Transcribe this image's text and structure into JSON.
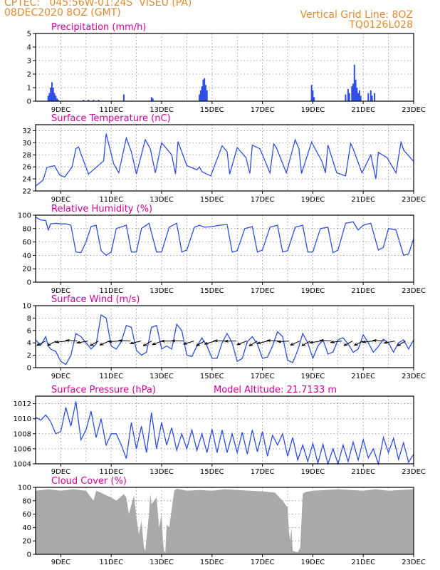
{
  "header": {
    "line1_left": "CPTEC:   045:56W-01:24S  VISEU (PA)",
    "line2_left": "08DEC2020 8OZ (GMT)",
    "line1_right": "Vertical Grid Line: 8OZ",
    "line2_right": "TQ0126L028"
  },
  "colors": {
    "series": "#2e4ee6",
    "cloud": "#a9a9a9",
    "title": "#d6009a",
    "header": "#e08a2e"
  },
  "x_axis": {
    "ticks": [
      "9DEC",
      "11DEC",
      "13DEC",
      "15DEC",
      "17DEC",
      "19DEC",
      "21DEC",
      "23DEC"
    ],
    "tick_days": [
      9,
      11,
      13,
      15,
      17,
      19,
      21,
      23
    ],
    "range_days": [
      8.0,
      23.0
    ]
  },
  "chart_data": [
    {
      "type": "bar",
      "title": "Precipitation (mm/h)",
      "ylim": [
        0,
        5
      ],
      "yticks": [
        "0",
        "1",
        "2",
        "3",
        "4",
        "5"
      ],
      "x_days": [
        8.5,
        8.55,
        8.6,
        8.65,
        8.7,
        8.75,
        8.8,
        8.85,
        8.9,
        9.9,
        10.1,
        10.3,
        10.5,
        11.5,
        12.6,
        12.65,
        14.5,
        14.55,
        14.6,
        14.65,
        14.7,
        14.75,
        14.8,
        18.95,
        19.0,
        19.05,
        20.3,
        20.4,
        20.45,
        20.55,
        20.6,
        20.65,
        20.7,
        20.75,
        20.8,
        20.85,
        20.9,
        21.2,
        21.3,
        21.35,
        21.45
      ],
      "values": [
        0.4,
        0.6,
        1.0,
        1.4,
        1.0,
        0.6,
        0.4,
        0.2,
        0.1,
        0.1,
        0.1,
        0.1,
        0.1,
        0.5,
        0.3,
        0.2,
        0.5,
        0.8,
        1.1,
        1.6,
        1.7,
        1.2,
        0.8,
        1.2,
        0.8,
        0.3,
        0.5,
        0.9,
        0.6,
        1.1,
        1.3,
        2.7,
        1.6,
        1.0,
        0.6,
        0.8,
        0.4,
        0.6,
        0.8,
        0.4,
        0.6
      ]
    },
    {
      "type": "line",
      "title": "Surface Temperature (nC)",
      "ylim": [
        22,
        33
      ],
      "yticks": [
        "22",
        "24",
        "26",
        "28",
        "30",
        "32"
      ],
      "x_days": [
        8.0,
        8.3,
        8.45,
        8.75,
        8.95,
        9.15,
        9.45,
        9.6,
        9.7,
        10.1,
        10.7,
        10.8,
        11.1,
        11.3,
        11.6,
        11.8,
        12.0,
        12.35,
        12.55,
        12.75,
        13.0,
        13.4,
        13.55,
        13.65,
        14.0,
        14.4,
        14.5,
        14.6,
        14.95,
        15.4,
        15.6,
        15.7,
        16.0,
        16.35,
        16.5,
        16.6,
        16.9,
        17.3,
        17.45,
        17.55,
        17.95,
        18.3,
        18.45,
        18.55,
        18.95,
        19.35,
        19.5,
        19.6,
        19.95,
        20.3,
        20.5,
        20.6,
        20.95,
        21.3,
        21.5,
        21.6,
        21.95,
        22.3,
        22.5,
        22.6,
        23.0
      ],
      "values": [
        22.8,
        23.8,
        25.9,
        26.2,
        24.7,
        24.3,
        26.0,
        29.0,
        29.3,
        24.8,
        27.0,
        31.5,
        26.5,
        25.0,
        30.8,
        28.5,
        24.8,
        30.5,
        29.0,
        25.0,
        30.0,
        28.0,
        24.8,
        30.2,
        26.2,
        25.5,
        26.0,
        25.2,
        24.5,
        29.5,
        28.5,
        24.8,
        29.2,
        27.5,
        24.9,
        29.6,
        29.0,
        25.0,
        29.8,
        29.2,
        25.0,
        30.5,
        29.0,
        24.9,
        30.1,
        27.0,
        25.0,
        29.6,
        25.0,
        24.5,
        29.9,
        29.0,
        25.0,
        28.0,
        24.0,
        28.4,
        27.5,
        25.0,
        30.2,
        28.8,
        26.9
      ]
    },
    {
      "type": "line",
      "title": "Relative Humidity (%)",
      "ylim": [
        0,
        100
      ],
      "yticks": [
        "0",
        "20",
        "40",
        "60",
        "80",
        "100"
      ],
      "x_days": [
        8.0,
        8.2,
        8.4,
        8.5,
        8.6,
        8.8,
        9.0,
        9.2,
        9.4,
        9.6,
        9.8,
        10.0,
        10.2,
        10.4,
        10.6,
        10.8,
        11.0,
        11.2,
        11.6,
        11.8,
        12.0,
        12.2,
        12.5,
        12.8,
        13.0,
        13.3,
        13.6,
        13.8,
        14.0,
        14.3,
        14.5,
        14.7,
        15.0,
        15.3,
        15.6,
        15.8,
        16.0,
        16.3,
        16.6,
        16.8,
        17.0,
        17.3,
        17.6,
        17.8,
        18.0,
        18.3,
        18.6,
        18.8,
        19.0,
        19.3,
        19.6,
        19.8,
        20.0,
        20.3,
        20.6,
        20.8,
        21.0,
        21.3,
        21.6,
        21.8,
        22.0,
        22.3,
        22.6,
        22.8,
        23.0
      ],
      "values": [
        97,
        93,
        92,
        78,
        87,
        88,
        87,
        87,
        85,
        45,
        44,
        60,
        83,
        85,
        47,
        40,
        45,
        80,
        85,
        45,
        45,
        80,
        88,
        45,
        45,
        82,
        88,
        45,
        48,
        82,
        85,
        82,
        83,
        85,
        86,
        45,
        47,
        80,
        83,
        45,
        48,
        82,
        85,
        45,
        47,
        82,
        85,
        45,
        45,
        80,
        82,
        44,
        48,
        88,
        90,
        78,
        85,
        88,
        48,
        52,
        80,
        78,
        40,
        42,
        65
      ]
    },
    {
      "type": "line",
      "title": "Surface Wind (m/s)",
      "ylim": [
        0,
        10
      ],
      "yticks": [
        "0",
        "2",
        "4",
        "6",
        "8",
        "10"
      ],
      "x_days": [
        8.0,
        8.2,
        8.4,
        8.5,
        8.6,
        8.8,
        9.0,
        9.2,
        9.4,
        9.6,
        9.8,
        10.0,
        10.2,
        10.4,
        10.6,
        10.8,
        11.0,
        11.2,
        11.4,
        11.6,
        11.8,
        12.0,
        12.2,
        12.4,
        12.6,
        12.8,
        13.0,
        13.2,
        13.4,
        13.6,
        13.8,
        14.0,
        14.2,
        14.4,
        14.6,
        14.8,
        15.0,
        15.2,
        15.4,
        15.6,
        15.8,
        16.0,
        16.2,
        16.4,
        16.6,
        16.8,
        17.0,
        17.2,
        17.4,
        17.6,
        17.8,
        18.0,
        18.2,
        18.4,
        18.6,
        18.8,
        19.0,
        19.2,
        19.4,
        19.6,
        19.8,
        20.0,
        20.2,
        20.4,
        20.6,
        20.8,
        21.0,
        21.2,
        21.4,
        21.6,
        21.8,
        22.0,
        22.2,
        22.4,
        22.6,
        22.8,
        23.0
      ],
      "values": [
        4.5,
        3.6,
        5.0,
        3.5,
        3.0,
        2.6,
        1.0,
        0.5,
        2.0,
        5.5,
        5.0,
        4.0,
        3.0,
        3.8,
        8.5,
        8.0,
        3.5,
        3.0,
        4.2,
        6.8,
        6.5,
        2.8,
        2.0,
        2.5,
        6.5,
        6.8,
        3.0,
        3.5,
        3.0,
        7.0,
        6.0,
        2.0,
        1.8,
        3.5,
        4.8,
        3.5,
        1.5,
        1.5,
        4.0,
        5.5,
        4.0,
        1.0,
        1.5,
        4.2,
        5.0,
        3.8,
        1.5,
        1.7,
        3.5,
        5.8,
        5.0,
        1.2,
        0.8,
        2.8,
        5.5,
        4.0,
        1.5,
        3.5,
        4.5,
        2.2,
        2.5,
        4.5,
        4.8,
        3.8,
        2.5,
        3.0,
        5.3,
        4.0,
        2.5,
        3.4,
        4.6,
        4.0,
        2.5,
        4.0,
        4.5,
        3.0,
        4.5
      ]
    },
    {
      "type": "line",
      "title": "Surface Pressure (hPa)",
      "annotation": "Model Altitude: 21.7133 m",
      "ylim": [
        1004,
        1013
      ],
      "yticks": [
        "1004",
        "1006",
        "1008",
        "1010",
        "1012"
      ],
      "x_days": [
        8.0,
        8.2,
        8.4,
        8.6,
        8.8,
        9.0,
        9.2,
        9.4,
        9.6,
        9.8,
        10.0,
        10.2,
        10.4,
        10.6,
        10.8,
        11.0,
        11.2,
        11.4,
        11.6,
        11.8,
        12.0,
        12.2,
        12.4,
        12.6,
        12.8,
        13.0,
        13.2,
        13.4,
        13.6,
        13.8,
        14.0,
        14.2,
        14.4,
        14.6,
        14.8,
        15.0,
        15.2,
        15.4,
        15.6,
        15.8,
        16.0,
        16.2,
        16.4,
        16.6,
        16.8,
        17.0,
        17.2,
        17.4,
        17.6,
        17.8,
        18.0,
        18.2,
        18.4,
        18.6,
        18.8,
        19.0,
        19.2,
        19.4,
        19.6,
        19.8,
        20.0,
        20.2,
        20.4,
        20.6,
        20.8,
        21.0,
        21.2,
        21.4,
        21.6,
        21.8,
        22.0,
        22.2,
        22.4,
        22.6,
        22.8,
        23.0
      ],
      "values": [
        1010.2,
        1009.8,
        1010.5,
        1009.6,
        1008.0,
        1008.3,
        1011.5,
        1009.0,
        1012.3,
        1007.2,
        1008.5,
        1011.0,
        1007.5,
        1010.0,
        1006.5,
        1008.0,
        1008.0,
        1006.5,
        1004.7,
        1009.5,
        1006.0,
        1009.0,
        1005.5,
        1010.8,
        1006.0,
        1009.5,
        1006.5,
        1008.8,
        1005.8,
        1008.0,
        1006.0,
        1008.5,
        1005.8,
        1008.0,
        1005.5,
        1008.6,
        1005.5,
        1008.5,
        1005.5,
        1008.0,
        1005.5,
        1008.2,
        1005.3,
        1008.5,
        1005.6,
        1008.3,
        1005.0,
        1007.8,
        1006.5,
        1008.0,
        1005.0,
        1007.5,
        1004.5,
        1006.5,
        1004.3,
        1006.7,
        1004.1,
        1006.6,
        1004.0,
        1006.0,
        1004.0,
        1006.5,
        1004.3,
        1006.9,
        1004.5,
        1007.2,
        1004.8,
        1006.0,
        1004.0,
        1007.5,
        1005.5,
        1007.4,
        1004.6,
        1006.8,
        1004.2,
        1005.3
      ]
    },
    {
      "type": "area",
      "title": "Cloud Cover (%)",
      "ylim": [
        0,
        100
      ],
      "yticks": [
        "0",
        "20",
        "40",
        "60",
        "80",
        "100"
      ],
      "x_days": [
        8.0,
        8.5,
        9.0,
        9.5,
        10.0,
        10.3,
        10.4,
        10.6,
        10.8,
        11.0,
        11.2,
        11.5,
        11.6,
        11.7,
        11.9,
        12.0,
        12.1,
        12.2,
        12.3,
        12.35,
        12.5,
        12.55,
        12.6,
        12.8,
        12.9,
        13.0,
        13.05,
        13.1,
        13.15,
        13.2,
        13.3,
        13.5,
        13.6,
        14.0,
        14.5,
        15.0,
        15.5,
        16.0,
        16.5,
        17.0,
        17.5,
        17.8,
        18.0,
        18.05,
        18.1,
        18.15,
        18.2,
        18.4,
        18.5,
        18.6,
        18.7,
        19.0,
        19.5,
        20.0,
        20.5,
        21.0,
        21.5,
        22.0,
        22.5,
        23.0
      ],
      "values": [
        95,
        97,
        95,
        97,
        95,
        80,
        95,
        92,
        88,
        85,
        80,
        90,
        85,
        60,
        88,
        55,
        30,
        50,
        10,
        5,
        60,
        90,
        75,
        85,
        40,
        60,
        20,
        5,
        3,
        45,
        40,
        95,
        98,
        95,
        96,
        95,
        97,
        96,
        95,
        94,
        92,
        80,
        70,
        35,
        20,
        40,
        5,
        3,
        10,
        90,
        93,
        95,
        96,
        97,
        96,
        95,
        97,
        95,
        96,
        97
      ]
    }
  ]
}
